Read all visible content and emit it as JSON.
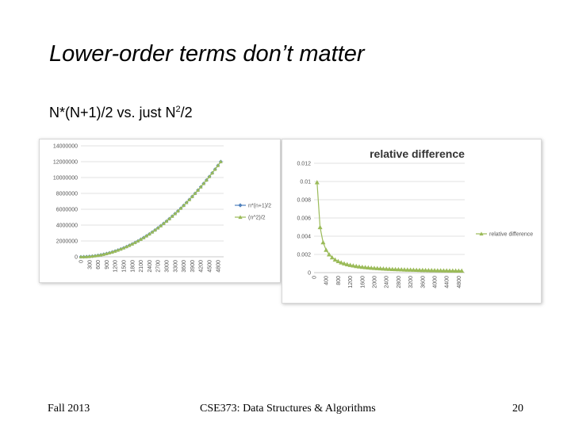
{
  "slide": {
    "title": "Lower-order terms don’t matter",
    "subtitle_main": "N*(N+1)/2 vs. just N",
    "subtitle_sup": "2",
    "subtitle_end": "/2",
    "footer_left": "Fall 2013",
    "footer_center": "CSE373: Data Structures & Algorithms",
    "footer_right": "20"
  },
  "colors": {
    "series_a": "#4f81bd",
    "series_b": "#9bbb59",
    "grid": "#d9d9d9"
  },
  "chart_data": [
    {
      "type": "line",
      "title": "",
      "x_ticks": [
        "0",
        "300",
        "600",
        "900",
        "1200",
        "1500",
        "1800",
        "2100",
        "2400",
        "2700",
        "3000",
        "3300",
        "3600",
        "3900",
        "4200",
        "4500",
        "4800"
      ],
      "y_ticks": [
        "0",
        "2000000",
        "4000000",
        "6000000",
        "8000000",
        "10000000",
        "12000000",
        "14000000"
      ],
      "xlim": [
        0,
        5000
      ],
      "ylim": [
        0,
        14000000
      ],
      "x_step": 100,
      "series": [
        {
          "name": "n*(n+1)/2",
          "formula": "n*(n+1)/2",
          "marker": "diamond"
        },
        {
          "name": "(n^2)/2",
          "formula": "n^2/2",
          "marker": "triangle"
        }
      ],
      "legend": "right"
    },
    {
      "type": "line",
      "title": "relative difference",
      "x_ticks": [
        "0",
        "400",
        "800",
        "1200",
        "1600",
        "2000",
        "2400",
        "2800",
        "3200",
        "3600",
        "4000",
        "4400",
        "4800"
      ],
      "y_ticks": [
        "0",
        "0.002",
        "0.004",
        "0.006",
        "0.008",
        "0.01",
        "0.012"
      ],
      "xlim": [
        0,
        5000
      ],
      "ylim": [
        0,
        0.012
      ],
      "x_step": 100,
      "series": [
        {
          "name": "relative difference",
          "formula": "(n*(n+1)/2 - n^2/2) / (n*(n+1)/2)",
          "marker": "triangle"
        }
      ],
      "legend": "right"
    }
  ]
}
